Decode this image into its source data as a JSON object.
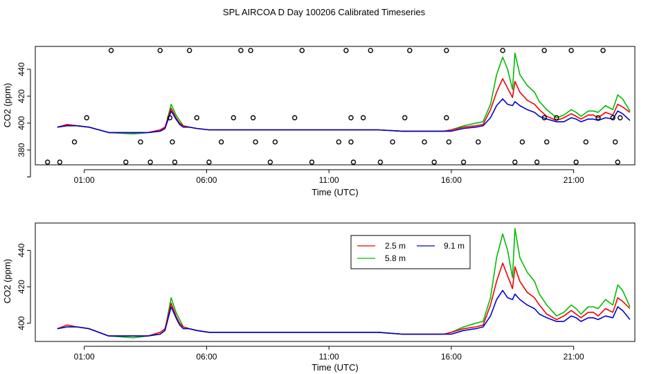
{
  "title": "SPL AIRCOA D  Day 100206  Calibrated Timeseries",
  "chart_data": [
    {
      "type": "scatter",
      "panel": "top",
      "xlabel": "Time (UTC)",
      "ylabel": "CO2 (ppm)",
      "xlim": [
        23.0,
        47.5
      ],
      "ylim": [
        369,
        457
      ],
      "xticks": [
        25,
        30,
        35,
        40,
        45
      ],
      "xtick_labels": [
        "01:00",
        "06:00",
        "11:00",
        "16:00",
        "21:00"
      ],
      "yticks": [
        380,
        400,
        420,
        440
      ],
      "yticks_minor": [
        360
      ],
      "series": [
        {
          "name": "2.5 m",
          "color": "#ee0000",
          "x": [
            23.9,
            24.3,
            24.7,
            25.2,
            26.0,
            27.0,
            27.6,
            28.1,
            28.3,
            28.55,
            28.75,
            28.9,
            29.05,
            29.3,
            29.6,
            30.1,
            31,
            32,
            33,
            34,
            35,
            36,
            37,
            38,
            39,
            39.7,
            40.0,
            40.5,
            41.0,
            41.3,
            41.6,
            41.85,
            42.1,
            42.3,
            42.5,
            42.6,
            42.8,
            43.1,
            43.4,
            43.6,
            43.9,
            44.3,
            44.6,
            44.9,
            45.1,
            45.3,
            45.6,
            45.8,
            46.0,
            46.3,
            46.6,
            46.8,
            47.0,
            47.3
          ],
          "y": [
            397,
            399,
            398,
            397,
            393,
            393,
            393,
            395,
            397,
            411,
            404,
            400,
            398,
            397,
            396,
            395,
            395,
            395,
            395,
            395,
            395,
            395,
            395,
            394,
            394,
            394,
            395,
            397,
            398,
            399,
            410,
            423,
            433,
            426,
            419,
            431,
            423,
            417,
            414,
            410,
            405,
            402,
            404,
            407,
            405,
            403,
            406,
            406,
            404,
            408,
            406,
            414,
            412,
            408
          ]
        },
        {
          "name": "5.8 m",
          "color": "#00bb00",
          "x": [
            23.9,
            24.3,
            24.7,
            25.2,
            26.0,
            27.0,
            27.6,
            28.1,
            28.3,
            28.55,
            28.75,
            28.9,
            29.05,
            29.3,
            29.6,
            30.1,
            31,
            32,
            33,
            34,
            35,
            36,
            37,
            38,
            39,
            39.7,
            40.0,
            40.5,
            41.0,
            41.3,
            41.6,
            41.85,
            42.1,
            42.3,
            42.5,
            42.6,
            42.8,
            43.1,
            43.4,
            43.6,
            43.9,
            44.3,
            44.6,
            44.9,
            45.1,
            45.3,
            45.6,
            45.8,
            46.0,
            46.3,
            46.6,
            46.8,
            47.0,
            47.3
          ],
          "y": [
            397,
            398,
            398,
            397,
            393,
            392,
            393,
            394,
            396,
            414,
            406,
            402,
            398,
            397,
            396,
            395,
            395,
            395,
            395,
            395,
            395,
            395,
            395,
            394,
            394,
            394,
            395,
            398,
            400,
            401,
            414,
            436,
            449,
            440,
            425,
            452,
            436,
            428,
            423,
            416,
            410,
            404,
            406,
            410,
            408,
            405,
            409,
            409,
            408,
            413,
            410,
            421,
            418,
            409
          ]
        },
        {
          "name": "9.1 m",
          "color": "#0000cc",
          "x": [
            23.9,
            24.3,
            24.7,
            25.2,
            26.0,
            27.0,
            27.6,
            28.1,
            28.3,
            28.55,
            28.75,
            28.9,
            29.05,
            29.3,
            29.6,
            30.1,
            31,
            32,
            33,
            34,
            35,
            36,
            37,
            38,
            39,
            39.7,
            40.0,
            40.5,
            41.0,
            41.3,
            41.6,
            41.85,
            42.1,
            42.3,
            42.5,
            42.6,
            42.8,
            43.1,
            43.4,
            43.6,
            43.9,
            44.3,
            44.6,
            44.9,
            45.1,
            45.3,
            45.6,
            45.8,
            46.0,
            46.3,
            46.6,
            46.8,
            47.0,
            47.3
          ],
          "y": [
            397,
            398,
            398,
            397,
            393,
            393,
            393,
            394,
            396,
            409,
            403,
            399,
            397,
            397,
            396,
            395,
            395,
            395,
            395,
            395,
            395,
            395,
            395,
            394,
            394,
            394,
            394,
            396,
            397,
            398,
            404,
            413,
            418,
            414,
            413,
            416,
            413,
            410,
            408,
            405,
            403,
            401,
            401,
            404,
            403,
            401,
            403,
            403,
            402,
            404,
            403,
            409,
            407,
            402
          ]
        }
      ],
      "markers": {
        "shape": "open-circle",
        "x": [
          23.5,
          24.0,
          24.6,
          25.1,
          26.1,
          26.7,
          27.3,
          27.7,
          28.1,
          28.5,
          28.6,
          28.7,
          29.3,
          29.6,
          30.1,
          30.6,
          31.1,
          31.4,
          31.8,
          31.9,
          32.0,
          32.6,
          32.8,
          33.6,
          33.9,
          34.3,
          35.4,
          35.7,
          35.9,
          35.9,
          36.0,
          36.4,
          36.7,
          37.1,
          37.6,
          38.1,
          38.3,
          38.9,
          39.3,
          39.8,
          39.8,
          39.9,
          40.5,
          41.1,
          42.1,
          42.6,
          42.9,
          43.5,
          43.8,
          43.8,
          43.9,
          44.3,
          44.9,
          45.1,
          45.5,
          46.0,
          46.2,
          46.6,
          46.7,
          46.8,
          46.9
        ],
        "y": [
          371,
          371,
          386,
          404,
          454,
          371,
          386,
          371,
          454,
          404,
          386,
          371,
          454,
          404,
          371,
          386,
          404,
          454,
          454,
          404,
          386,
          371,
          386,
          404,
          454,
          371,
          386,
          454,
          404,
          386,
          371,
          404,
          454,
          371,
          386,
          404,
          454,
          386,
          371,
          454,
          404,
          386,
          371,
          386,
          454,
          371,
          386,
          371,
          404,
          454,
          386,
          404,
          454,
          371,
          386,
          404,
          454,
          404,
          386,
          371,
          404
        ]
      }
    },
    {
      "type": "line",
      "panel": "bottom",
      "xlabel": "Time (UTC)",
      "ylabel": "CO2 (ppm)",
      "xlim": [
        23.0,
        47.5
      ],
      "ylim": [
        390,
        455
      ],
      "xticks": [
        25,
        30,
        35,
        40,
        45
      ],
      "xtick_labels": [
        "01:00",
        "06:00",
        "11:00",
        "16:00",
        "21:00"
      ],
      "yticks": [
        400,
        420,
        440
      ],
      "legend": {
        "entries": [
          "2.5 m",
          "5.8 m",
          "9.1 m"
        ],
        "position": "top-right"
      },
      "series_ref": "same as top panel"
    }
  ]
}
